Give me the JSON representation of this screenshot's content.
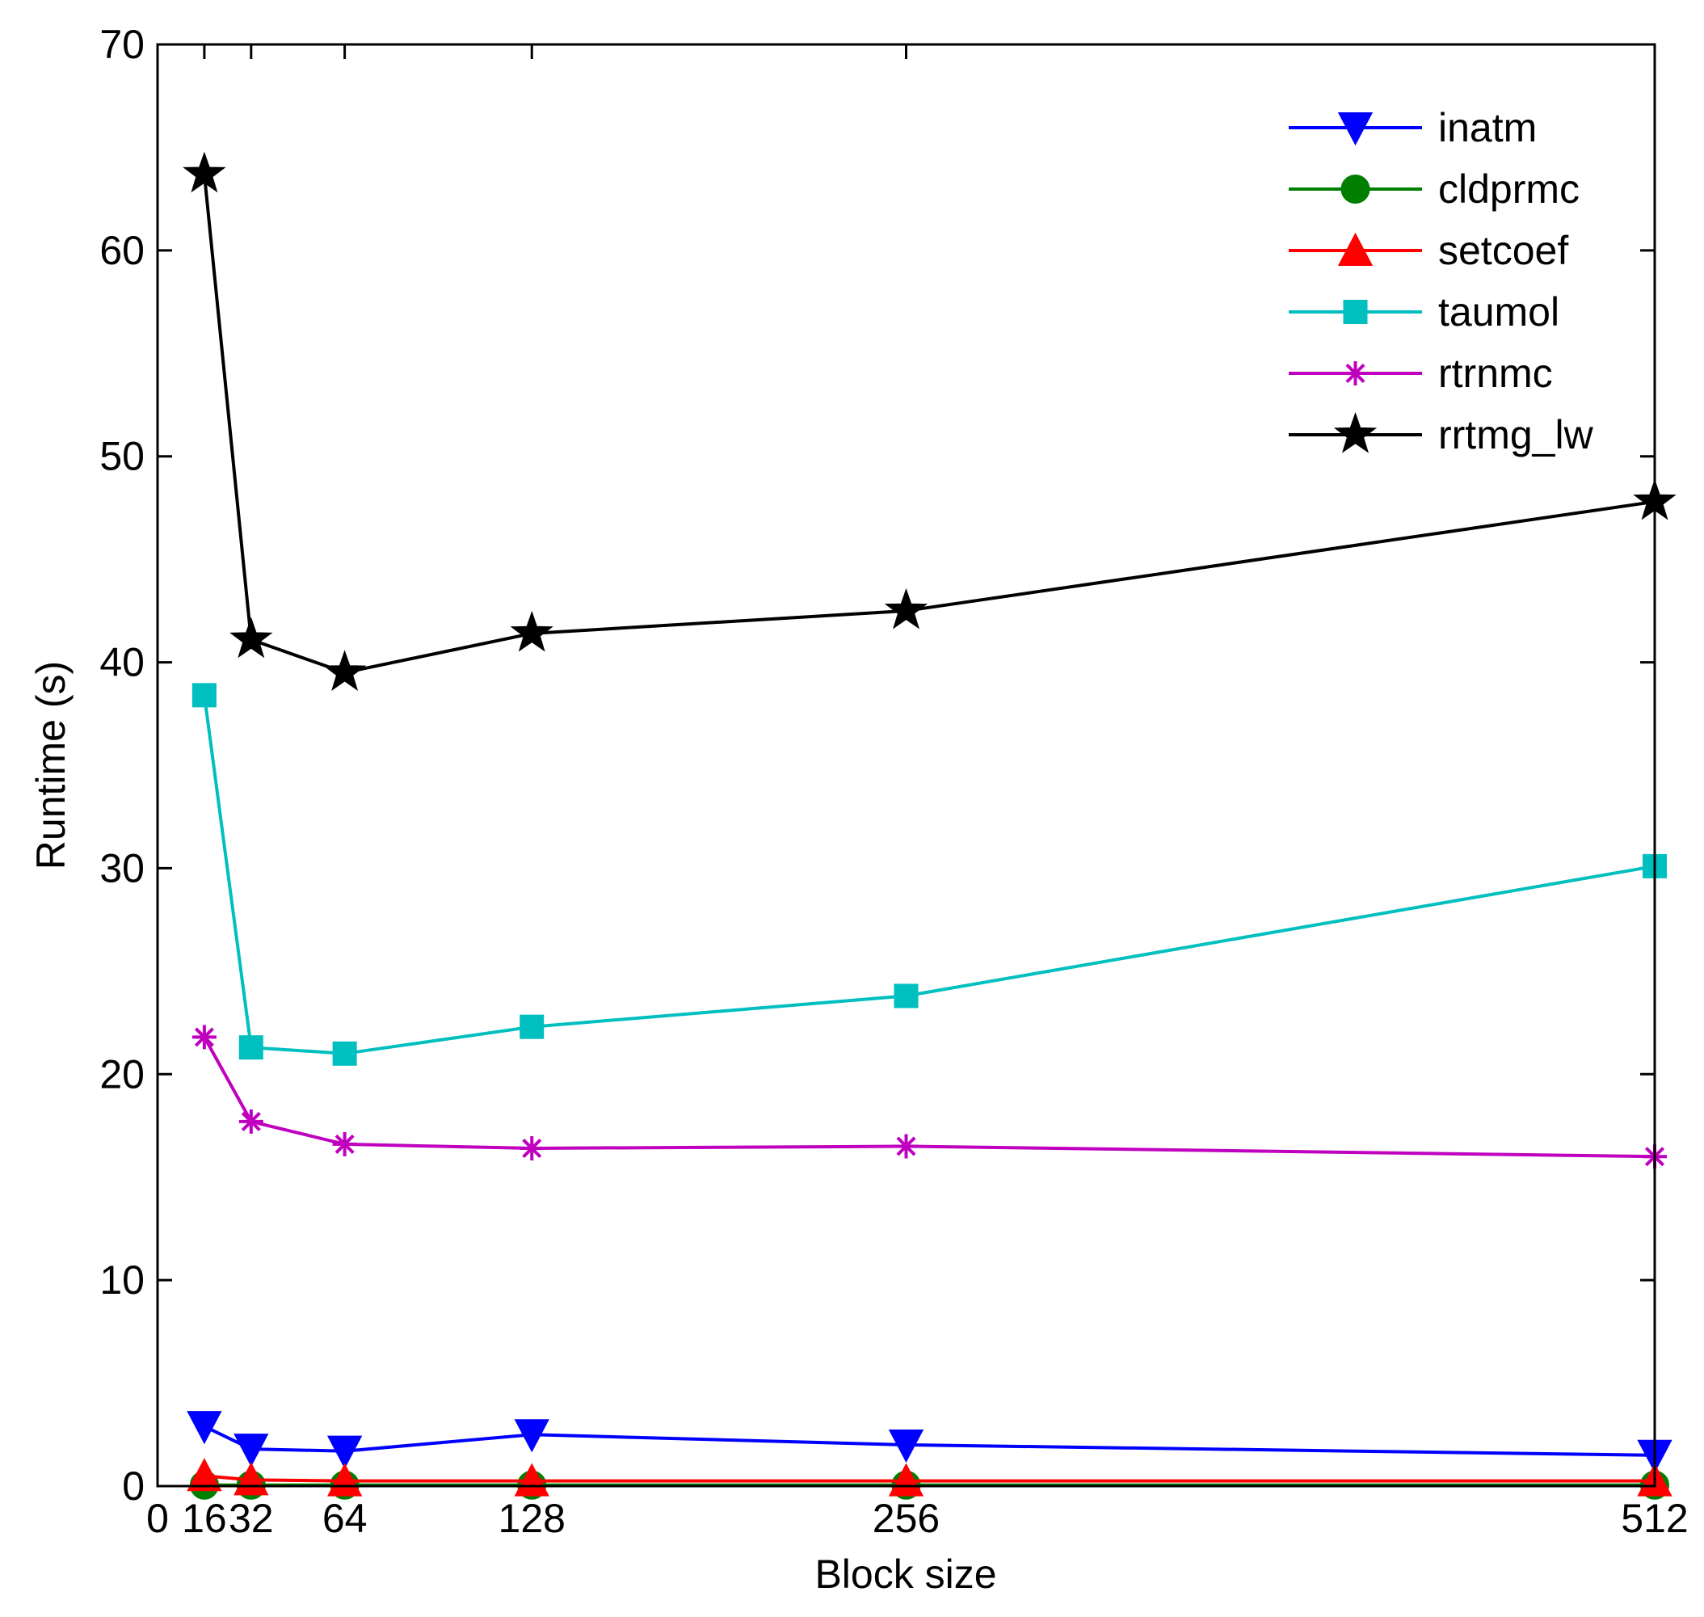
{
  "chart_data": {
    "type": "line",
    "title": "",
    "xlabel": "Block size",
    "ylabel": "Runtime (s)",
    "xlim": [
      0,
      512
    ],
    "ylim": [
      0,
      70
    ],
    "x": [
      16,
      32,
      64,
      128,
      256,
      512
    ],
    "xticks": [
      0,
      16,
      32,
      64,
      128,
      256,
      512
    ],
    "xtick_labels": [
      "0",
      "16",
      "32",
      "64",
      "128",
      "256",
      "512"
    ],
    "yticks": [
      0,
      10,
      20,
      30,
      40,
      50,
      60,
      70
    ],
    "ytick_labels": [
      "0",
      "10",
      "20",
      "30",
      "40",
      "50",
      "60",
      "70"
    ],
    "legend_position": "top-right",
    "series": [
      {
        "name": "inatm",
        "color": "#0000ff",
        "marker": "triangle-down",
        "values": [
          2.9,
          1.8,
          1.7,
          2.5,
          2.0,
          1.5
        ]
      },
      {
        "name": "cldprmc",
        "color": "#007f00",
        "marker": "circle",
        "values": [
          0.05,
          0.05,
          0.05,
          0.05,
          0.05,
          0.05
        ]
      },
      {
        "name": "setcoef",
        "color": "#ff0000",
        "marker": "triangle-up",
        "values": [
          0.5,
          0.3,
          0.25,
          0.25,
          0.25,
          0.25
        ]
      },
      {
        "name": "taumol",
        "color": "#00bfbf",
        "marker": "square",
        "values": [
          38.4,
          21.3,
          21.0,
          22.3,
          23.8,
          30.1
        ]
      },
      {
        "name": "rtrnmc",
        "color": "#bf00bf",
        "marker": "asterisk",
        "values": [
          21.8,
          17.7,
          16.6,
          16.4,
          16.5,
          16.0
        ]
      },
      {
        "name": "rrtmg_lw",
        "color": "#000000",
        "marker": "star",
        "values": [
          63.7,
          41.1,
          39.5,
          41.4,
          42.5,
          47.8
        ]
      }
    ]
  }
}
